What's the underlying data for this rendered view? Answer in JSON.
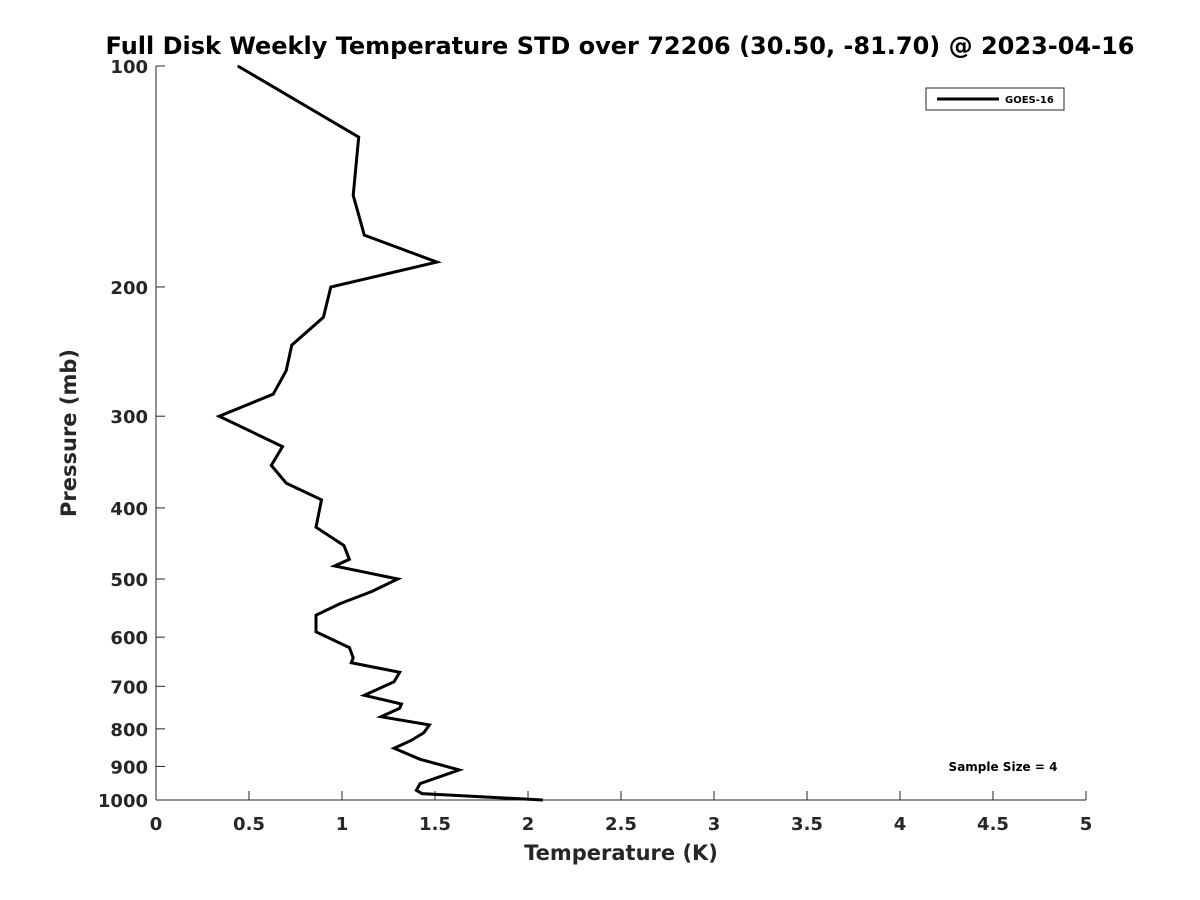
{
  "chart_data": {
    "type": "line",
    "title": "Full Disk Weekly Temperature STD over 72206 (30.50, -81.70) @ 2023-04-16",
    "xlabel": "Temperature (K)",
    "ylabel": "Pressure (mb)",
    "xlim": [
      0,
      5
    ],
    "ylim": [
      100,
      1000
    ],
    "y_scale": "log",
    "y_reversed": true,
    "grid": false,
    "legend_position": "top-right",
    "xticks": [
      0,
      0.5,
      1,
      1.5,
      2,
      2.5,
      3,
      3.5,
      4,
      4.5,
      5
    ],
    "xtick_labels": [
      "0",
      "0.5",
      "1",
      "1.5",
      "2",
      "2.5",
      "3",
      "3.5",
      "4",
      "4.5",
      "5"
    ],
    "yticks": [
      100,
      200,
      300,
      400,
      500,
      600,
      700,
      800,
      900,
      1000
    ],
    "ytick_labels": [
      "100",
      "200",
      "300",
      "400",
      "500",
      "600",
      "700",
      "800",
      "900",
      "1000"
    ],
    "series": [
      {
        "name": "GOES-16",
        "color": "#000000",
        "points": [
          [
            0.44,
            100
          ],
          [
            1.09,
            125
          ],
          [
            1.06,
            150
          ],
          [
            1.12,
            170
          ],
          [
            1.51,
            185
          ],
          [
            0.94,
            200
          ],
          [
            0.9,
            220
          ],
          [
            0.73,
            240
          ],
          [
            0.7,
            260
          ],
          [
            0.63,
            280
          ],
          [
            0.34,
            300
          ],
          [
            0.68,
            330
          ],
          [
            0.62,
            350
          ],
          [
            0.7,
            370
          ],
          [
            0.89,
            390
          ],
          [
            0.86,
            425
          ],
          [
            1.01,
            450
          ],
          [
            1.04,
            470
          ],
          [
            0.96,
            480
          ],
          [
            1.3,
            500
          ],
          [
            1.16,
            520
          ],
          [
            0.99,
            540
          ],
          [
            0.86,
            560
          ],
          [
            0.86,
            590
          ],
          [
            1.04,
            620
          ],
          [
            1.06,
            640
          ],
          [
            1.05,
            650
          ],
          [
            1.31,
            670
          ],
          [
            1.28,
            690
          ],
          [
            1.12,
            720
          ],
          [
            1.32,
            740
          ],
          [
            1.31,
            750
          ],
          [
            1.21,
            770
          ],
          [
            1.47,
            790
          ],
          [
            1.44,
            810
          ],
          [
            1.37,
            830
          ],
          [
            1.28,
            850
          ],
          [
            1.42,
            880
          ],
          [
            1.63,
            910
          ],
          [
            1.42,
            950
          ],
          [
            1.4,
            970
          ],
          [
            1.43,
            980
          ],
          [
            2.08,
            1000
          ]
        ]
      }
    ],
    "legend_entries": [
      "GOES-16"
    ],
    "annotation": "Sample Size = 4"
  }
}
